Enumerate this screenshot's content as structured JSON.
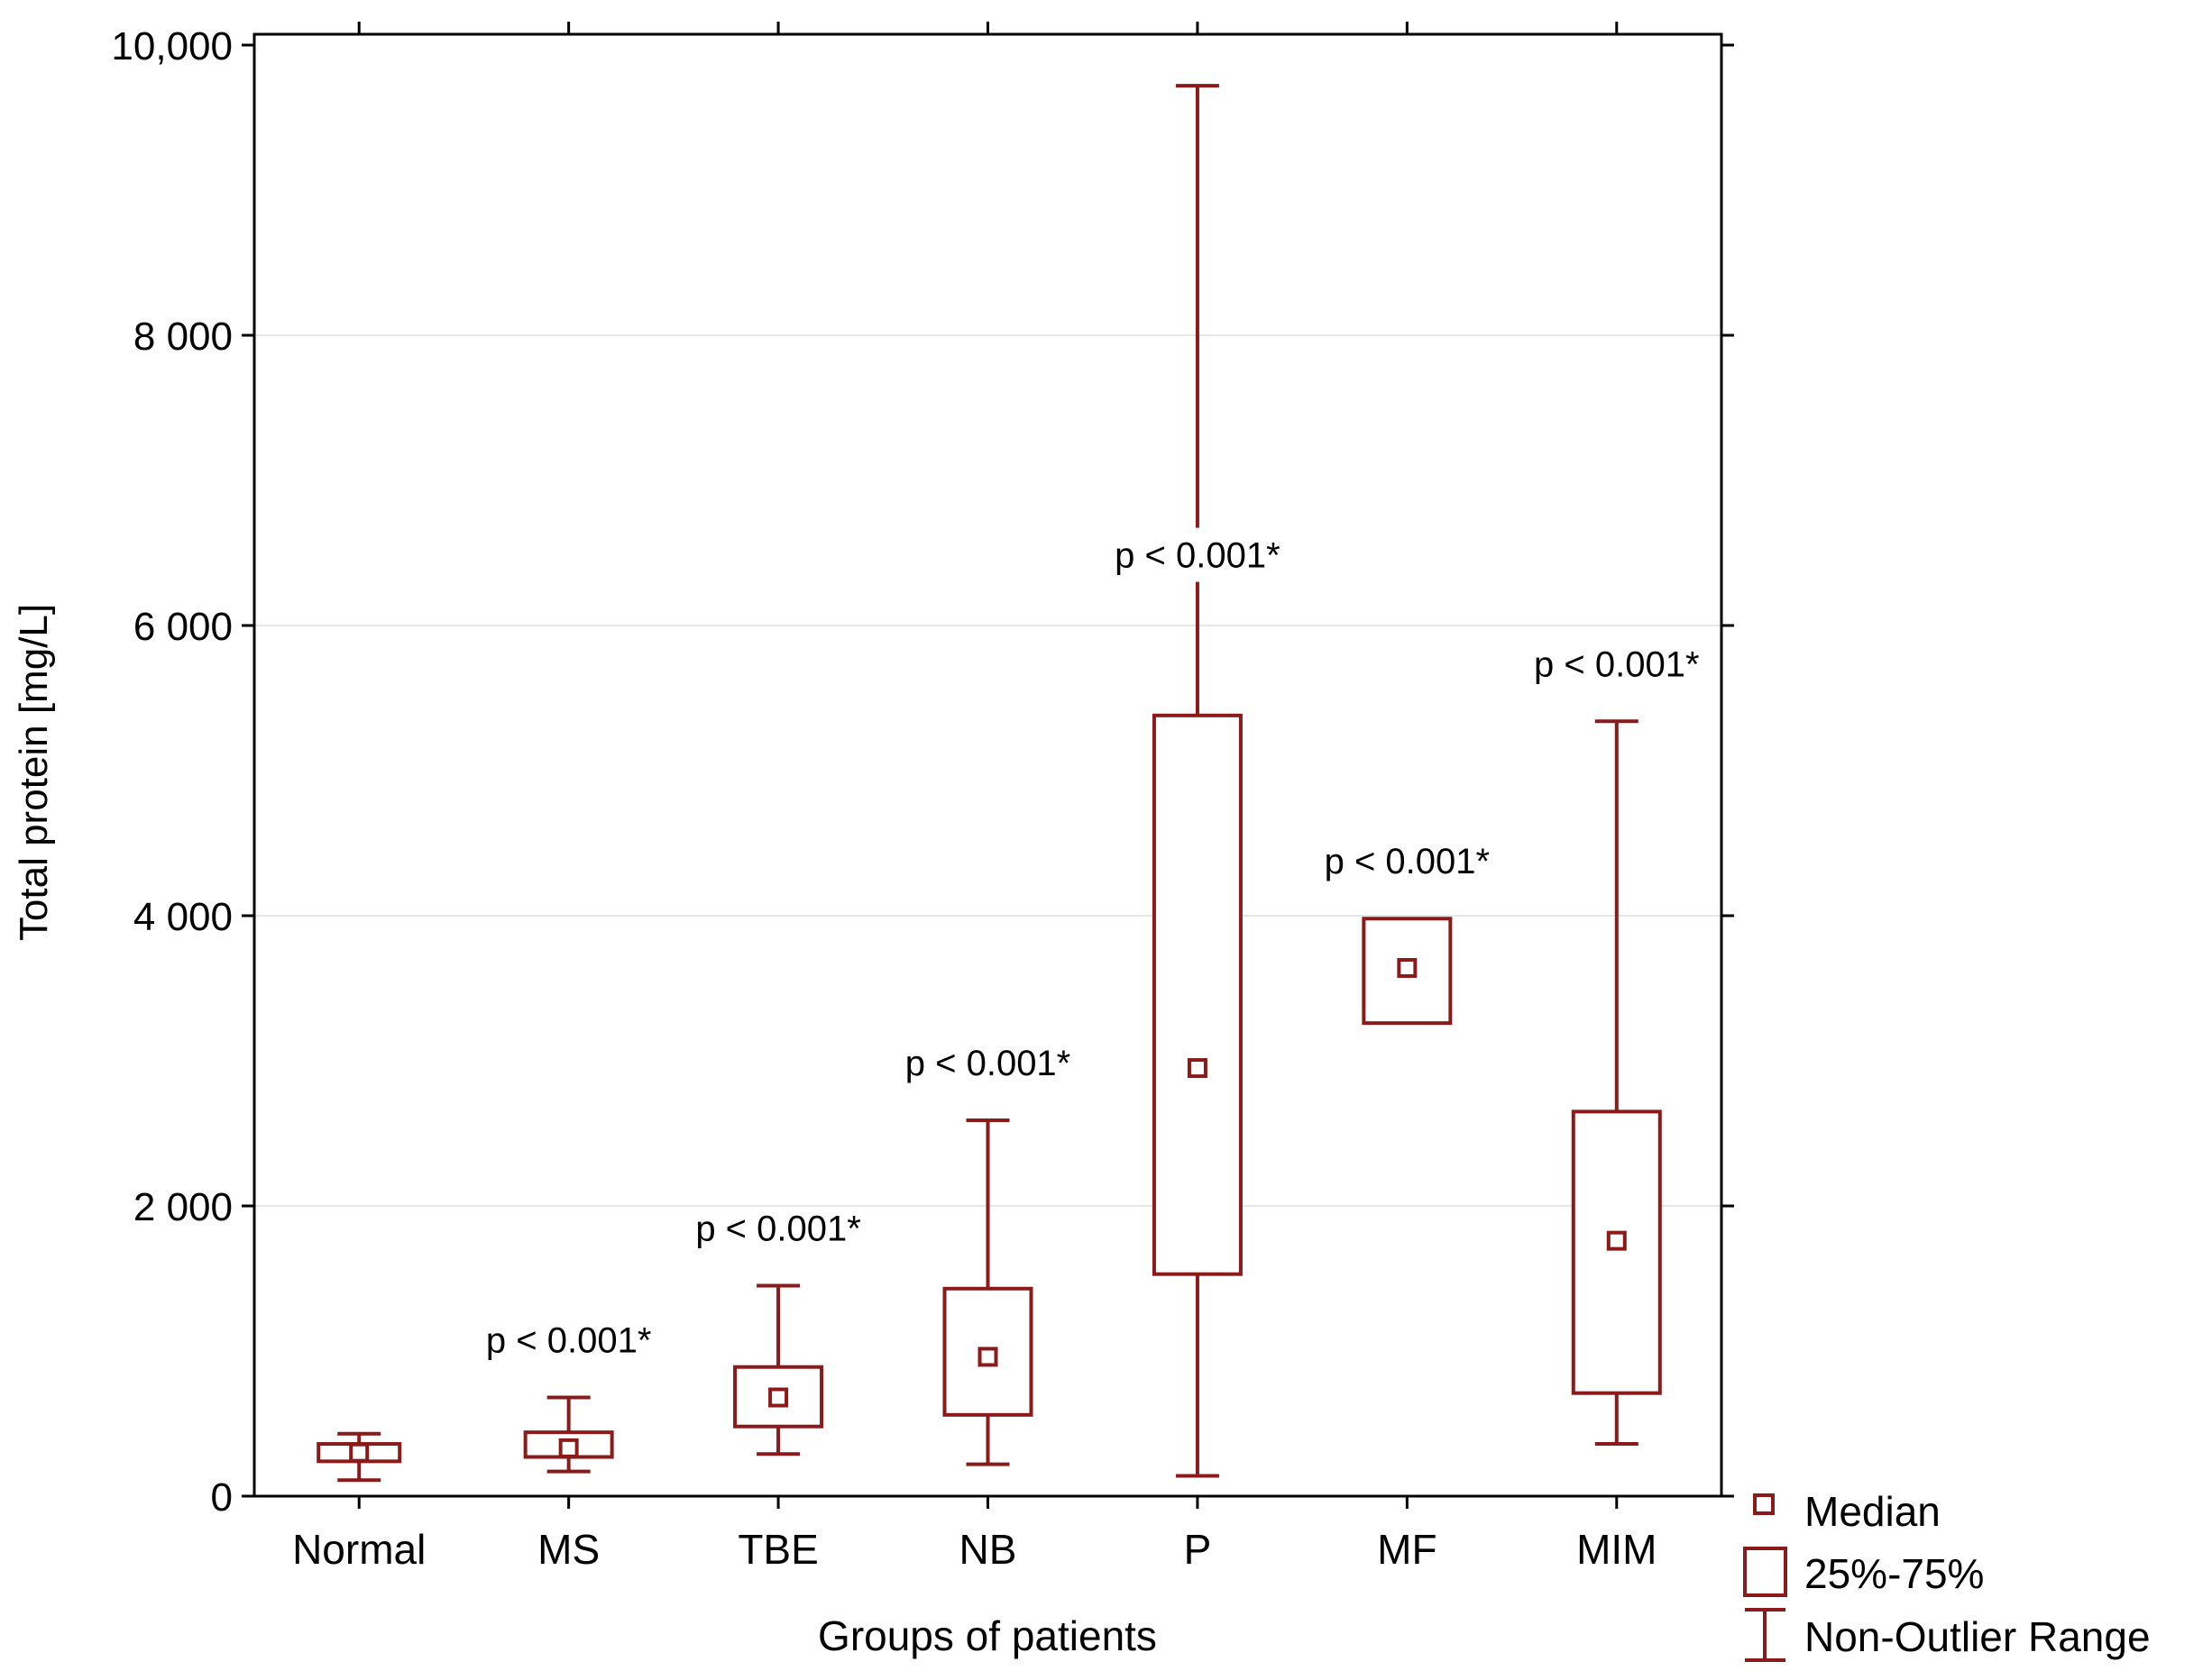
{
  "colors": {
    "series": "#8b1a1a",
    "axis": "#000000",
    "grid": "#e6e6e6"
  },
  "chart_data": {
    "type": "boxplot",
    "xlabel": "Groups of patients",
    "ylabel": "Total protein [mg/L]",
    "ylim": [
      0,
      10000
    ],
    "yticks": [
      0,
      2000,
      4000,
      6000,
      8000,
      10000
    ],
    "ytick_labels": [
      "0",
      "2 000",
      "4 000",
      "6 000",
      "8 000",
      "10,000"
    ],
    "grid": "horizontal",
    "legend_position": "bottom-right, outside plot",
    "legend": [
      "Median",
      "25%-75%",
      "Non-Outlier Range"
    ],
    "categories": [
      "Normal",
      "MS",
      "TBE",
      "NB",
      "P",
      "MF",
      "MIM"
    ],
    "boxes": [
      {
        "group": "Normal",
        "whisker_low": 110,
        "q1": 240,
        "median": 300,
        "q3": 360,
        "whisker_high": 430,
        "annotation": ""
      },
      {
        "group": "MS",
        "whisker_low": 170,
        "q1": 270,
        "median": 330,
        "q3": 440,
        "whisker_high": 680,
        "annotation": "p < 0.001*"
      },
      {
        "group": "TBE",
        "whisker_low": 290,
        "q1": 480,
        "median": 680,
        "q3": 890,
        "whisker_high": 1450,
        "annotation": "p < 0.001*"
      },
      {
        "group": "NB",
        "whisker_low": 220,
        "q1": 560,
        "median": 960,
        "q3": 1430,
        "whisker_high": 2590,
        "annotation": "p < 0.001*"
      },
      {
        "group": "P",
        "whisker_low": 140,
        "q1": 1530,
        "median": 2950,
        "q3": 5380,
        "whisker_high": 9720,
        "annotation": "p < 0.001*"
      },
      {
        "group": "MF",
        "whisker_low": 3260,
        "q1": 3260,
        "median": 3640,
        "q3": 3980,
        "whisker_high": 3980,
        "annotation": "p < 0.001*"
      },
      {
        "group": "MIM",
        "whisker_low": 360,
        "q1": 710,
        "median": 1760,
        "q3": 2650,
        "whisker_high": 5340,
        "annotation": "p < 0.001*"
      }
    ]
  }
}
